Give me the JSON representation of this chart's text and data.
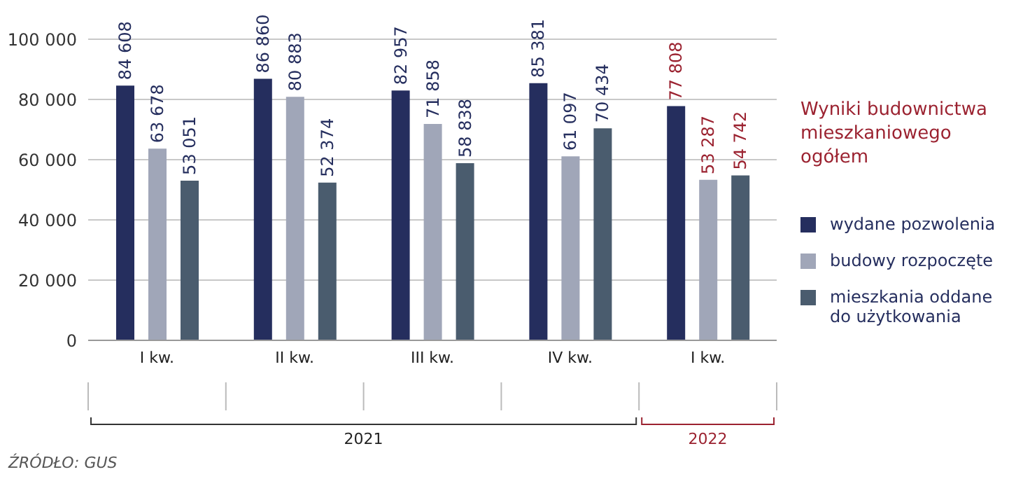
{
  "chart_data": {
    "type": "bar",
    "legend_title": "Wyniki budownictwa mieszkaniowego ogółem",
    "categories": [
      "I kw.",
      "II kw.",
      "III kw.",
      "IV kw.",
      "I kw."
    ],
    "series": [
      {
        "name": "wydane pozwolenia",
        "color": "#252e5e",
        "values": [
          84608,
          86860,
          82957,
          85381,
          77808
        ],
        "value_labels": [
          "84 608",
          "86 860",
          "82 957",
          "85 381",
          "77 808"
        ]
      },
      {
        "name": "budowy rozpoczęte",
        "color": "#a0a6b8",
        "values": [
          63678,
          80883,
          71858,
          61097,
          53287
        ],
        "value_labels": [
          "63 678",
          "80 883",
          "71 858",
          "61 097",
          "53 287"
        ]
      },
      {
        "name": "mieszkania oddane do użytkowania",
        "color": "#4a5c6e",
        "values": [
          53051,
          52374,
          58838,
          70434,
          54742
        ],
        "value_labels": [
          "53 051",
          "52 374",
          "58 838",
          "70 434",
          "54 742"
        ]
      }
    ],
    "ylim": [
      0,
      100000
    ],
    "yticks": [
      {
        "value": 0,
        "label": "0"
      },
      {
        "value": 20000,
        "label": "20 000"
      },
      {
        "value": 40000,
        "label": "40 000"
      },
      {
        "value": 60000,
        "label": "60 000"
      },
      {
        "value": 80000,
        "label": "80 000"
      },
      {
        "value": 100000,
        "label": "100 000"
      }
    ],
    "grid": "y",
    "legend": "right",
    "annotations": [
      "2021",
      "2022",
      "ŹRÓDŁO: GUS"
    ]
  }
}
